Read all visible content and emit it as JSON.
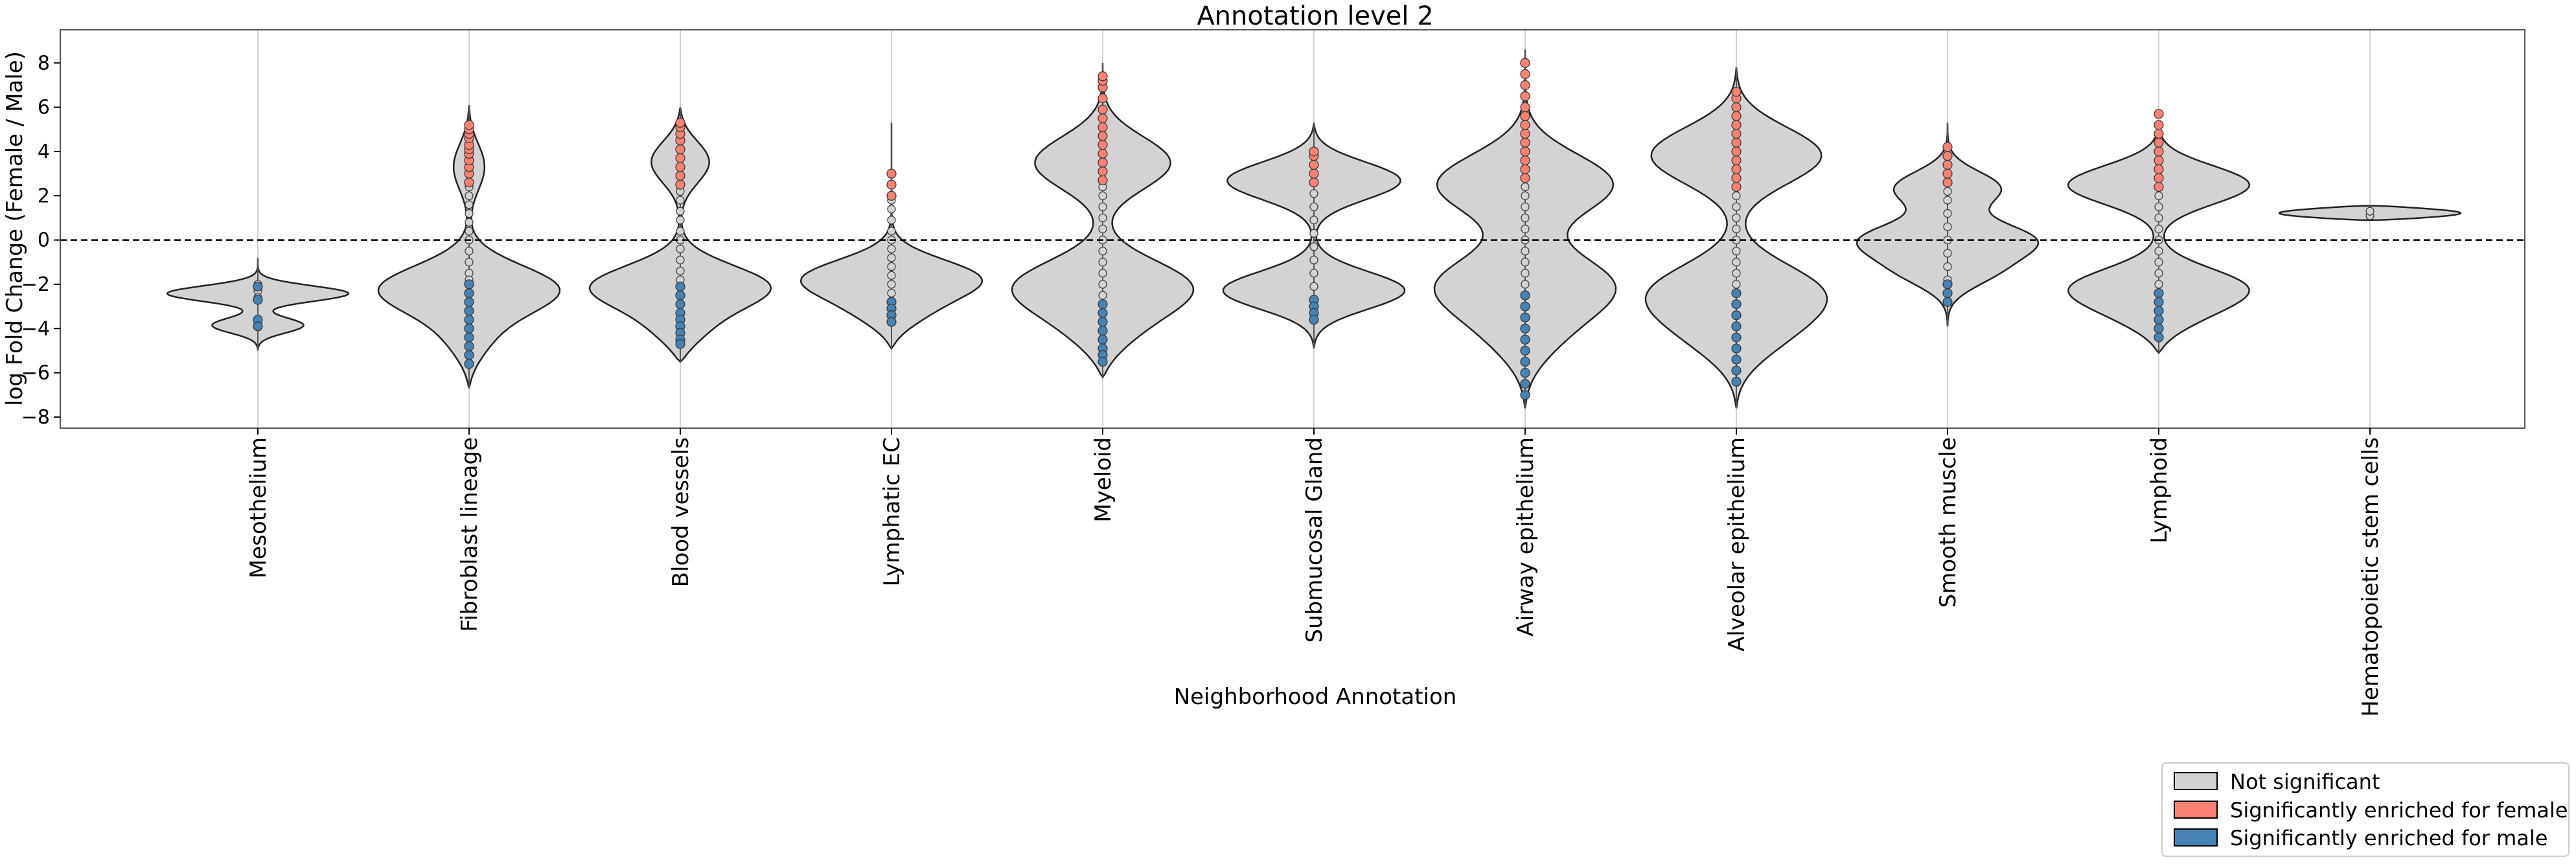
{
  "chart_data": {
    "type": "violin",
    "title": "Annotation level 2",
    "xlabel": "Neighborhood Annotation",
    "ylabel": "log Fold Change (Female / Male)",
    "ylim": [
      -8.5,
      9.5
    ],
    "yticks": [
      -8,
      -6,
      -4,
      -2,
      0,
      2,
      4,
      6,
      8
    ],
    "reference_line": 0,
    "grid": "vertical",
    "legend_position": "bottom-right",
    "colors": {
      "not_significant": "#d3d3d3",
      "female": "#fa8072",
      "male": "#4682b4"
    },
    "legend": [
      {
        "key": "not_significant",
        "label": "Not significant"
      },
      {
        "key": "female",
        "label": "Significantly enriched for female"
      },
      {
        "key": "male",
        "label": "Significantly enriched for male"
      }
    ],
    "categories": [
      {
        "name": "Mesothelium",
        "range": [
          -5.0,
          -0.8
        ],
        "modes": [
          [
            -2.4,
            0.35
          ],
          [
            -3.9,
            0.2
          ]
        ]
      },
      {
        "name": "Fibroblast lineage",
        "range": [
          -6.7,
          6.1
        ],
        "modes": [
          [
            -2.3,
            0.7
          ],
          [
            -4.6,
            0.2
          ],
          [
            3.5,
            0.15
          ]
        ]
      },
      {
        "name": "Blood vessels",
        "range": [
          -5.5,
          6.0
        ],
        "modes": [
          [
            -2.2,
            0.65
          ],
          [
            -4.2,
            0.25
          ],
          [
            3.7,
            0.25
          ]
        ]
      },
      {
        "name": "Lymphatic EC",
        "range": [
          -4.9,
          5.3
        ],
        "modes": [
          [
            -1.8,
            0.65
          ],
          [
            -3.4,
            0.3
          ]
        ]
      },
      {
        "name": "Myeloid",
        "range": [
          -6.2,
          8.0
        ],
        "modes": [
          [
            -2.2,
            0.7
          ],
          [
            -4.3,
            0.3
          ],
          [
            3.6,
            0.55
          ]
        ]
      },
      {
        "name": "Submucosal Gland",
        "range": [
          -4.9,
          5.3
        ],
        "modes": [
          [
            -2.4,
            0.65
          ],
          [
            2.8,
            0.62
          ]
        ]
      },
      {
        "name": "Airway epithelium",
        "range": [
          -7.6,
          8.6
        ],
        "modes": [
          [
            -2.1,
            0.58
          ],
          [
            2.6,
            0.6
          ],
          [
            -4.5,
            0.25
          ]
        ]
      },
      {
        "name": "Alveolar epithelium",
        "range": [
          -7.6,
          7.8
        ],
        "modes": [
          [
            4.0,
            0.62
          ],
          [
            -2.4,
            0.5
          ],
          [
            -4.5,
            0.3
          ]
        ]
      },
      {
        "name": "Smooth muscle",
        "range": [
          -3.9,
          5.3
        ],
        "modes": [
          [
            0.0,
            0.5
          ],
          [
            2.4,
            0.35
          ],
          [
            -1.5,
            0.3
          ]
        ]
      },
      {
        "name": "Lymphoid",
        "range": [
          -5.1,
          5.4
        ],
        "modes": [
          [
            2.6,
            0.58
          ],
          [
            -2.2,
            0.5
          ],
          [
            -3.6,
            0.25
          ]
        ]
      },
      {
        "name": "Hematopoietic stem cells",
        "range": [
          0.9,
          1.55
        ],
        "modes": [
          [
            1.2,
            0.12
          ]
        ]
      }
    ],
    "points": [
      {
        "category": 0,
        "not_significant": [
          -2.0,
          -2.3,
          -2.6,
          -3.8
        ],
        "female": [],
        "male": [
          -2.1,
          -2.7,
          -3.6,
          -3.9
        ]
      },
      {
        "category": 1,
        "not_significant": [
          -1.5,
          -1.0,
          -0.5,
          0.0,
          0.4,
          0.8,
          1.2,
          1.6,
          2.0,
          2.4,
          -1.8
        ],
        "female": [
          2.6,
          3.0,
          3.3,
          3.6,
          3.9,
          4.1,
          4.3,
          4.6,
          4.8,
          5.0,
          5.2
        ],
        "male": [
          -2.0,
          -2.4,
          -2.8,
          -3.2,
          -3.6,
          -4.0,
          -4.4,
          -4.8,
          -5.2,
          -5.6
        ]
      },
      {
        "category": 2,
        "not_significant": [
          -1.4,
          -0.9,
          -0.4,
          0.0,
          0.4,
          0.9,
          1.3,
          1.8,
          2.2,
          -1.8
        ],
        "female": [
          2.5,
          2.9,
          3.3,
          3.7,
          4.1,
          4.5,
          4.8,
          5.1,
          5.3
        ],
        "male": [
          -2.1,
          -2.5,
          -2.9,
          -3.3,
          -3.6,
          -3.9,
          -4.2,
          -4.5,
          -4.7
        ]
      },
      {
        "category": 3,
        "not_significant": [
          -2.0,
          -1.6,
          -1.2,
          -0.8,
          -0.4,
          0.0,
          0.4,
          0.9,
          1.4,
          1.8,
          -2.4
        ],
        "female": [
          2.0,
          2.5,
          3.0
        ],
        "male": [
          -2.8,
          -3.1,
          -3.4,
          -3.7
        ]
      },
      {
        "category": 4,
        "not_significant": [
          -2.5,
          -2.0,
          -1.5,
          -1.0,
          -0.5,
          0.0,
          0.5,
          1.0,
          1.5,
          2.0,
          2.4
        ],
        "female": [
          2.7,
          3.1,
          3.5,
          3.9,
          4.3,
          4.7,
          5.1,
          5.5,
          5.9,
          6.4,
          6.9,
          7.2,
          7.4
        ],
        "male": [
          -2.9,
          -3.3,
          -3.7,
          -4.1,
          -4.5,
          -4.9,
          -5.2,
          -5.5
        ]
      },
      {
        "category": 5,
        "not_significant": [
          -2.1,
          -1.5,
          -0.9,
          -0.3,
          0.3,
          0.9,
          1.5,
          2.1
        ],
        "female": [
          2.6,
          3.0,
          3.4,
          3.8,
          4.0
        ],
        "male": [
          -2.7,
          -3.0,
          -3.3,
          -3.6
        ]
      },
      {
        "category": 6,
        "not_significant": [
          -2.0,
          -1.5,
          -1.0,
          -0.5,
          0.0,
          0.5,
          1.0,
          1.5,
          2.0,
          2.4
        ],
        "female": [
          2.8,
          3.2,
          3.6,
          4.0,
          4.4,
          4.8,
          5.2,
          5.6,
          6.0,
          6.5,
          7.0,
          7.5,
          8.0
        ],
        "male": [
          -2.5,
          -3.0,
          -3.5,
          -4.0,
          -4.5,
          -5.0,
          -5.5,
          -6.0,
          -6.5,
          -7.0
        ]
      },
      {
        "category": 7,
        "not_significant": [
          -2.0,
          -1.5,
          -1.0,
          -0.5,
          0.0,
          0.5,
          1.0,
          1.5,
          2.0
        ],
        "female": [
          2.4,
          2.8,
          3.2,
          3.6,
          4.0,
          4.4,
          4.8,
          5.2,
          5.6,
          6.0,
          6.4,
          6.7
        ],
        "male": [
          -2.4,
          -2.9,
          -3.4,
          -3.9,
          -4.4,
          -4.9,
          -5.4,
          -5.9,
          -6.4
        ]
      },
      {
        "category": 8,
        "not_significant": [
          -1.8,
          -1.2,
          -0.6,
          0.0,
          0.6,
          1.2,
          1.8,
          2.2
        ],
        "female": [
          2.6,
          3.0,
          3.4,
          3.8,
          4.2
        ],
        "male": [
          -2.0,
          -2.4,
          -2.8
        ]
      },
      {
        "category": 9,
        "not_significant": [
          -2.0,
          -1.5,
          -1.0,
          -0.5,
          0.0,
          0.5,
          1.0,
          1.5,
          2.0
        ],
        "female": [
          2.4,
          2.8,
          3.2,
          3.6,
          4.0,
          4.4,
          4.8,
          5.2,
          5.7
        ],
        "male": [
          -2.4,
          -2.8,
          -3.2,
          -3.6,
          -4.0,
          -4.4
        ]
      },
      {
        "category": 10,
        "not_significant": [
          1.1,
          1.3
        ],
        "female": [],
        "male": []
      }
    ]
  }
}
